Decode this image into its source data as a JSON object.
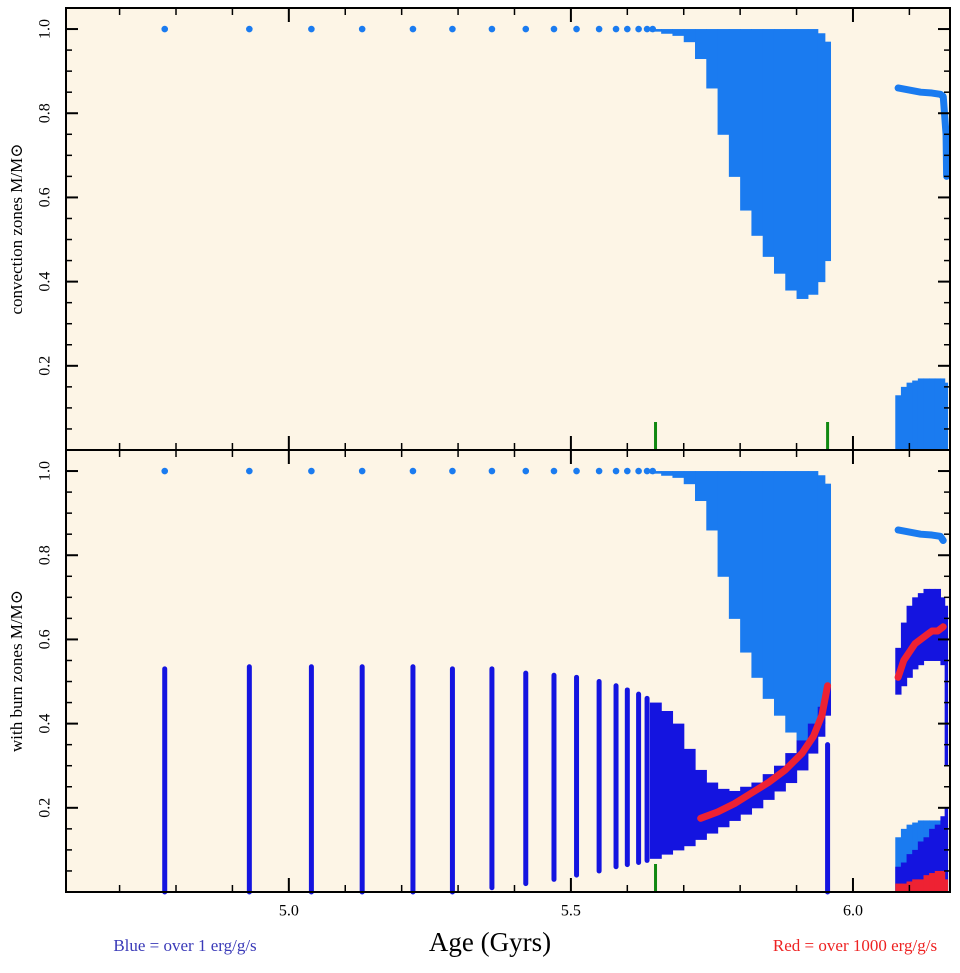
{
  "chart_data": [
    {
      "type": "zones",
      "ylabel": "convection zones M/M⊙",
      "xlim": [
        4.605,
        6.172
      ],
      "ylim": [
        0,
        1.05
      ],
      "xticks": [
        5,
        5.5,
        6
      ],
      "xminorticks": [
        4.7,
        4.8,
        4.9,
        5.1,
        5.2,
        5.3,
        5.4,
        5.6,
        5.7,
        5.8,
        5.9,
        6.1
      ],
      "yticks": [
        {
          "value": 0.2,
          "label": "0.2"
        },
        {
          "value": 0.4,
          "label": "0.4"
        },
        {
          "value": 0.6,
          "label": "0.6"
        },
        {
          "value": 0.8,
          "label": "0.8"
        },
        {
          "value": 1,
          "label": "1.0"
        }
      ],
      "yminorticks": [
        0.05,
        0.1,
        0.15,
        0.25,
        0.3,
        0.35,
        0.45,
        0.5,
        0.55,
        0.65,
        0.7,
        0.75,
        0.85,
        0.9,
        0.95
      ],
      "background": "#fdf5e6",
      "markers": {
        "color": "#118811",
        "x": [
          5.65,
          5.955
        ]
      },
      "series": [
        {
          "style": "dots",
          "color": "#1a7bf0",
          "x": [
            4.78,
            4.93,
            5.04,
            5.13,
            5.22,
            5.29,
            5.36,
            5.42,
            5.47,
            5.51,
            5.55,
            5.58,
            5.6,
            5.62,
            5.635,
            5.645
          ],
          "values": [
            1,
            1,
            1,
            1,
            1,
            1,
            1,
            1,
            1,
            1,
            1,
            1,
            1,
            1,
            1,
            1
          ]
        },
        {
          "style": "band",
          "color": "#1a7bf0",
          "x": [
            5.65,
            5.67,
            5.69,
            5.71,
            5.73,
            5.75,
            5.77,
            5.79,
            5.81,
            5.83,
            5.85,
            5.87,
            5.89,
            5.91,
            5.93,
            5.945,
            5.955
          ],
          "low": [
            0.995,
            0.99,
            0.985,
            0.97,
            0.93,
            0.86,
            0.75,
            0.65,
            0.57,
            0.51,
            0.46,
            0.42,
            0.38,
            0.36,
            0.37,
            0.4,
            0.45
          ],
          "high": [
            1,
            1,
            1,
            1,
            1,
            1,
            1,
            1,
            1,
            1,
            1,
            1,
            1,
            1,
            1,
            0.99,
            0.97
          ]
        },
        {
          "style": "line",
          "color": "#1a7bf0",
          "x": [
            6.08,
            6.1,
            6.12,
            6.14,
            6.155,
            6.16,
            6.165,
            6.166
          ],
          "values": [
            0.86,
            0.855,
            0.85,
            0.848,
            0.845,
            0.84,
            0.75,
            0.65
          ]
        },
        {
          "style": "band",
          "color": "#1a7bf0",
          "x": [
            6.08,
            6.09,
            6.1,
            6.11,
            6.12,
            6.13,
            6.14,
            6.15,
            6.16,
            6.165
          ],
          "low": [
            0,
            0,
            0,
            0,
            0,
            0,
            0,
            0,
            0,
            0
          ],
          "high": [
            0.13,
            0.15,
            0.16,
            0.165,
            0.17,
            0.17,
            0.17,
            0.17,
            0.17,
            0.16
          ]
        }
      ]
    },
    {
      "type": "zones",
      "ylabel": "with burn zones M/M⊙",
      "xlabel": "Age (Gyrs)",
      "annotations": [
        {
          "text": "Blue = over 1 erg/g/s",
          "color": "#3a3ab8"
        },
        {
          "text": "Red = over 1000 erg/g/s",
          "color": "#ee2222"
        }
      ],
      "xlim": [
        4.605,
        6.172
      ],
      "ylim": [
        0,
        1.05
      ],
      "xticks": [
        {
          "value": 5,
          "label": "5.0"
        },
        {
          "value": 5.5,
          "label": "5.5"
        },
        {
          "value": 6,
          "label": "6.0"
        }
      ],
      "xminorticks": [
        4.7,
        4.8,
        4.9,
        5.1,
        5.2,
        5.3,
        5.4,
        5.6,
        5.7,
        5.8,
        5.9,
        6.1
      ],
      "yticks": [
        {
          "value": 0.2,
          "label": "0.2"
        },
        {
          "value": 0.4,
          "label": "0.4"
        },
        {
          "value": 0.6,
          "label": "0.6"
        },
        {
          "value": 0.8,
          "label": "0.8"
        },
        {
          "value": 1,
          "label": "1.0"
        }
      ],
      "yminorticks": [
        0.05,
        0.1,
        0.15,
        0.25,
        0.3,
        0.35,
        0.45,
        0.5,
        0.55,
        0.65,
        0.7,
        0.75,
        0.85,
        0.9,
        0.95
      ],
      "background": "#fdf5e6",
      "markers": {
        "color": "#118811",
        "x": [
          5.65
        ]
      },
      "series": [
        {
          "style": "dots",
          "color": "#1a7bf0",
          "x": [
            4.78,
            4.93,
            5.04,
            5.13,
            5.22,
            5.29,
            5.36,
            5.42,
            5.47,
            5.51,
            5.55,
            5.58,
            5.6,
            5.62,
            5.635,
            5.645
          ],
          "values": [
            1,
            1,
            1,
            1,
            1,
            1,
            1,
            1,
            1,
            1,
            1,
            1,
            1,
            1,
            1,
            1
          ]
        },
        {
          "style": "band",
          "color": "#1a7bf0",
          "x": [
            5.65,
            5.67,
            5.69,
            5.71,
            5.73,
            5.75,
            5.77,
            5.79,
            5.81,
            5.83,
            5.85,
            5.87,
            5.89,
            5.91,
            5.93,
            5.945,
            5.955
          ],
          "low": [
            0.995,
            0.99,
            0.985,
            0.97,
            0.93,
            0.86,
            0.75,
            0.65,
            0.57,
            0.51,
            0.46,
            0.42,
            0.38,
            0.36,
            0.37,
            0.4,
            0.45
          ],
          "high": [
            1,
            1,
            1,
            1,
            1,
            1,
            1,
            1,
            1,
            1,
            1,
            1,
            1,
            1,
            1,
            0.99,
            0.97
          ]
        },
        {
          "style": "line",
          "color": "#1a7bf0",
          "x": [
            6.08,
            6.1,
            6.12,
            6.14,
            6.155,
            6.16
          ],
          "values": [
            0.86,
            0.855,
            0.85,
            0.848,
            0.845,
            0.835
          ]
        },
        {
          "style": "span",
          "color": "#1414e0",
          "x": [
            4.78,
            4.93,
            5.04,
            5.13,
            5.22,
            5.29,
            5.36,
            5.42,
            5.47,
            5.51,
            5.55,
            5.58,
            5.6,
            5.62,
            5.635,
            5.955
          ],
          "low": [
            0,
            0,
            0,
            0,
            0,
            0,
            0.01,
            0.02,
            0.03,
            0.04,
            0.05,
            0.06,
            0.065,
            0.07,
            0.075,
            0
          ],
          "high": [
            0.53,
            0.535,
            0.535,
            0.535,
            0.535,
            0.53,
            0.53,
            0.52,
            0.515,
            0.51,
            0.5,
            0.49,
            0.48,
            0.47,
            0.46,
            0.35
          ]
        },
        {
          "style": "band",
          "color": "#1414e0",
          "x": [
            5.65,
            5.67,
            5.69,
            5.71,
            5.73,
            5.75,
            5.77,
            5.79,
            5.81,
            5.83,
            5.85,
            5.87,
            5.89,
            5.91,
            5.93,
            5.945,
            5.955
          ],
          "low": [
            0.08,
            0.09,
            0.1,
            0.11,
            0.125,
            0.14,
            0.155,
            0.17,
            0.185,
            0.2,
            0.22,
            0.24,
            0.26,
            0.29,
            0.33,
            0.37,
            0.42
          ],
          "high": [
            0.45,
            0.43,
            0.4,
            0.34,
            0.29,
            0.26,
            0.245,
            0.24,
            0.25,
            0.26,
            0.28,
            0.3,
            0.33,
            0.36,
            0.4,
            0.44,
            0.49
          ]
        },
        {
          "style": "line",
          "color": "#ee2233",
          "x": [
            5.73,
            5.76,
            5.79,
            5.82,
            5.85,
            5.88,
            5.91,
            5.93,
            5.945,
            5.955
          ],
          "values": [
            0.175,
            0.19,
            0.21,
            0.235,
            0.26,
            0.29,
            0.33,
            0.37,
            0.42,
            0.49
          ]
        },
        {
          "style": "band",
          "color": "#1414e0",
          "x": [
            6.08,
            6.09,
            6.1,
            6.11,
            6.12,
            6.13,
            6.14,
            6.15,
            6.16,
            6.165
          ],
          "low": [
            0.47,
            0.49,
            0.51,
            0.53,
            0.54,
            0.55,
            0.55,
            0.55,
            0.54,
            0.3
          ],
          "high": [
            0.58,
            0.64,
            0.68,
            0.7,
            0.71,
            0.72,
            0.72,
            0.72,
            0.7,
            0.68
          ]
        },
        {
          "style": "line",
          "color": "#ee2233",
          "x": [
            6.08,
            6.09,
            6.1,
            6.11,
            6.12,
            6.13,
            6.14,
            6.15,
            6.16
          ],
          "values": [
            0.51,
            0.55,
            0.57,
            0.59,
            0.6,
            0.61,
            0.62,
            0.62,
            0.63
          ]
        },
        {
          "style": "band",
          "color": "#1a7bf0",
          "x": [
            6.08,
            6.09,
            6.1,
            6.11,
            6.12,
            6.13,
            6.14,
            6.15,
            6.16,
            6.165
          ],
          "low": [
            0,
            0,
            0,
            0,
            0,
            0,
            0,
            0,
            0,
            0
          ],
          "high": [
            0.13,
            0.15,
            0.16,
            0.165,
            0.17,
            0.17,
            0.17,
            0.17,
            0.17,
            0.16
          ]
        },
        {
          "style": "band",
          "color": "#1414e0",
          "x": [
            6.08,
            6.09,
            6.1,
            6.11,
            6.12,
            6.13,
            6.14,
            6.15,
            6.16,
            6.165
          ],
          "low": [
            0,
            0,
            0,
            0,
            0,
            0,
            0,
            0,
            0,
            0
          ],
          "high": [
            0.06,
            0.07,
            0.09,
            0.1,
            0.12,
            0.13,
            0.15,
            0.16,
            0.18,
            0.2
          ]
        },
        {
          "style": "band",
          "color": "#ee2233",
          "x": [
            6.08,
            6.09,
            6.1,
            6.11,
            6.12,
            6.13,
            6.14,
            6.15,
            6.16,
            6.165
          ],
          "low": [
            0,
            0,
            0,
            0,
            0,
            0,
            0,
            0,
            0,
            0
          ],
          "high": [
            0.02,
            0.02,
            0.025,
            0.03,
            0.03,
            0.04,
            0.045,
            0.05,
            0.05,
            0.03
          ]
        }
      ]
    }
  ]
}
